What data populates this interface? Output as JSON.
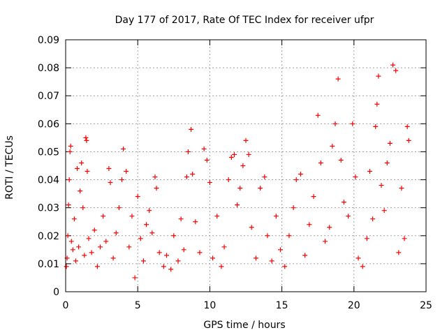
{
  "chart_data": {
    "type": "scatter",
    "title": "Day 177 of 2017, Rate Of TEC Index for receiver ufpr",
    "xlabel": "GPS time / hours",
    "ylabel": "ROTI / TECUs",
    "xlim": [
      0,
      25
    ],
    "ylim": [
      0,
      0.09
    ],
    "xticks": [
      "0",
      "5",
      "10",
      "15",
      "20",
      "25"
    ],
    "yticks": [
      "0",
      "0.01",
      "0.02",
      "0.03",
      "0.04",
      "0.05",
      "0.06",
      "0.07",
      "0.08",
      "0.09"
    ],
    "grid": true,
    "marker": "+",
    "color": "#ff0000",
    "points": [
      [
        0.05,
        0.009
      ],
      [
        0.1,
        0.012
      ],
      [
        0.15,
        0.02
      ],
      [
        0.2,
        0.031
      ],
      [
        0.25,
        0.04
      ],
      [
        0.3,
        0.05
      ],
      [
        0.35,
        0.052
      ],
      [
        0.4,
        0.018
      ],
      [
        0.5,
        0.015
      ],
      [
        0.6,
        0.026
      ],
      [
        0.7,
        0.011
      ],
      [
        0.8,
        0.044
      ],
      [
        0.9,
        0.016
      ],
      [
        1.0,
        0.036
      ],
      [
        1.1,
        0.046
      ],
      [
        1.2,
        0.03
      ],
      [
        1.3,
        0.013
      ],
      [
        1.4,
        0.055
      ],
      [
        1.45,
        0.054
      ],
      [
        1.5,
        0.043
      ],
      [
        1.6,
        0.019
      ],
      [
        1.8,
        0.014
      ],
      [
        2.0,
        0.022
      ],
      [
        2.2,
        0.009
      ],
      [
        2.4,
        0.016
      ],
      [
        2.6,
        0.027
      ],
      [
        2.8,
        0.018
      ],
      [
        3.0,
        0.044
      ],
      [
        3.1,
        0.039
      ],
      [
        3.3,
        0.012
      ],
      [
        3.5,
        0.021
      ],
      [
        3.7,
        0.03
      ],
      [
        3.9,
        0.04
      ],
      [
        4.0,
        0.051
      ],
      [
        4.2,
        0.043
      ],
      [
        4.4,
        0.016
      ],
      [
        4.6,
        0.027
      ],
      [
        4.8,
        0.005
      ],
      [
        5.0,
        0.034
      ],
      [
        5.2,
        0.019
      ],
      [
        5.4,
        0.011
      ],
      [
        5.6,
        0.024
      ],
      [
        5.8,
        0.029
      ],
      [
        6.0,
        0.021
      ],
      [
        6.2,
        0.041
      ],
      [
        6.3,
        0.037
      ],
      [
        6.5,
        0.014
      ],
      [
        6.8,
        0.009
      ],
      [
        7.0,
        0.013
      ],
      [
        7.3,
        0.008
      ],
      [
        7.5,
        0.02
      ],
      [
        7.8,
        0.011
      ],
      [
        8.0,
        0.026
      ],
      [
        8.2,
        0.015
      ],
      [
        8.4,
        0.041
      ],
      [
        8.5,
        0.05
      ],
      [
        8.7,
        0.058
      ],
      [
        8.8,
        0.042
      ],
      [
        9.0,
        0.025
      ],
      [
        9.3,
        0.014
      ],
      [
        9.6,
        0.051
      ],
      [
        9.8,
        0.047
      ],
      [
        10.0,
        0.039
      ],
      [
        10.2,
        0.012
      ],
      [
        10.5,
        0.027
      ],
      [
        10.8,
        0.009
      ],
      [
        11.0,
        0.016
      ],
      [
        11.3,
        0.04
      ],
      [
        11.5,
        0.048
      ],
      [
        11.7,
        0.049
      ],
      [
        11.9,
        0.031
      ],
      [
        12.1,
        0.037
      ],
      [
        12.3,
        0.045
      ],
      [
        12.5,
        0.054
      ],
      [
        12.7,
        0.049
      ],
      [
        12.9,
        0.023
      ],
      [
        13.2,
        0.012
      ],
      [
        13.5,
        0.037
      ],
      [
        13.8,
        0.041
      ],
      [
        14.0,
        0.02
      ],
      [
        14.3,
        0.011
      ],
      [
        14.6,
        0.027
      ],
      [
        14.9,
        0.015
      ],
      [
        15.2,
        0.009
      ],
      [
        15.5,
        0.02
      ],
      [
        15.8,
        0.03
      ],
      [
        16.0,
        0.04
      ],
      [
        16.3,
        0.042
      ],
      [
        16.6,
        0.013
      ],
      [
        16.9,
        0.024
      ],
      [
        17.2,
        0.034
      ],
      [
        17.5,
        0.063
      ],
      [
        17.7,
        0.046
      ],
      [
        18.0,
        0.018
      ],
      [
        18.3,
        0.023
      ],
      [
        18.5,
        0.052
      ],
      [
        18.7,
        0.06
      ],
      [
        18.9,
        0.076
      ],
      [
        19.1,
        0.047
      ],
      [
        19.3,
        0.032
      ],
      [
        19.6,
        0.027
      ],
      [
        19.9,
        0.06
      ],
      [
        20.1,
        0.041
      ],
      [
        20.3,
        0.012
      ],
      [
        20.6,
        0.009
      ],
      [
        20.9,
        0.019
      ],
      [
        21.1,
        0.043
      ],
      [
        21.3,
        0.026
      ],
      [
        21.5,
        0.059
      ],
      [
        21.6,
        0.067
      ],
      [
        21.7,
        0.077
      ],
      [
        21.9,
        0.038
      ],
      [
        22.1,
        0.029
      ],
      [
        22.3,
        0.046
      ],
      [
        22.5,
        0.053
      ],
      [
        22.7,
        0.081
      ],
      [
        22.9,
        0.079
      ],
      [
        23.1,
        0.014
      ],
      [
        23.3,
        0.037
      ],
      [
        23.5,
        0.019
      ],
      [
        23.7,
        0.059
      ],
      [
        23.8,
        0.054
      ]
    ]
  }
}
